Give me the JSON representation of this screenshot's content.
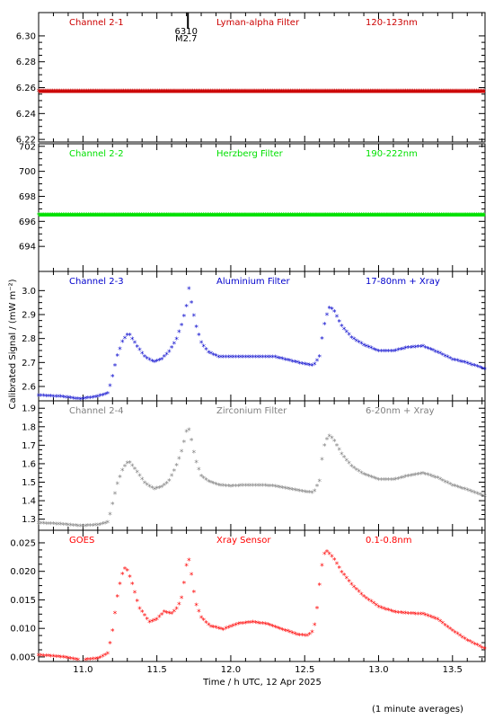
{
  "chart_data": {
    "type": "scatter",
    "xlabel": "Time / h UTC, 12 Apr 2025",
    "ylabel": "Calibrated Signal / (mW m⁻²)",
    "footnote": "(1 minute averages)",
    "xlim": [
      10.7,
      13.72
    ],
    "xticks": [
      11.0,
      11.5,
      12.0,
      12.5,
      13.0,
      13.5
    ],
    "xtick_labels": [
      "11.0",
      "11.5",
      "12.0",
      "12.5",
      "13.0",
      "13.5"
    ],
    "flare_marker": {
      "x": 11.71,
      "labels": [
        "6310",
        "M2.7"
      ]
    },
    "grid": false,
    "panels": [
      {
        "channel": "Channel 2-1",
        "filter": "Lyman-alpha Filter",
        "band": "120-123nm",
        "color": "#cc0000",
        "ylim": [
          6.218,
          6.318
        ],
        "yticks": [
          6.22,
          6.24,
          6.26,
          6.28,
          6.3
        ],
        "ytick_labels": [
          "6.22",
          "6.24",
          "6.26",
          "6.28",
          "6.30"
        ],
        "x": [
          10.7,
          13.72
        ],
        "y": [
          6.257,
          6.257
        ]
      },
      {
        "channel": "Channel 2-2",
        "filter": "Herzberg Filter",
        "band": "190-222nm",
        "color": "#00e000",
        "ylim": [
          692.0,
          702.2
        ],
        "yticks": [
          694,
          696,
          698,
          700,
          702
        ],
        "ytick_labels": [
          "694",
          "696",
          "698",
          "700",
          "702"
        ],
        "x": [
          10.7,
          13.72
        ],
        "y": [
          696.5,
          696.5
        ]
      },
      {
        "channel": "Channel 2-3",
        "filter": "Aluminium Filter",
        "band": "17-80nm + Xray",
        "color": "#0000cc",
        "ylim": [
          2.54,
          3.08
        ],
        "yticks": [
          2.6,
          2.7,
          2.8,
          2.9,
          3.0
        ],
        "ytick_labels": [
          "2.6",
          "2.7",
          "2.8",
          "2.9",
          "3.0"
        ],
        "x": [
          10.7,
          10.85,
          10.98,
          11.1,
          11.17,
          11.2,
          11.23,
          11.27,
          11.31,
          11.36,
          11.42,
          11.48,
          11.53,
          11.58,
          11.63,
          11.67,
          11.7,
          11.71,
          11.73,
          11.76,
          11.8,
          11.85,
          11.92,
          12.0,
          12.1,
          12.2,
          12.3,
          12.4,
          12.5,
          12.56,
          12.6,
          12.62,
          12.64,
          12.67,
          12.7,
          12.75,
          12.82,
          12.9,
          13.0,
          13.1,
          13.2,
          13.3,
          13.4,
          13.5,
          13.6,
          13.72
        ],
        "y": [
          2.56,
          2.555,
          2.545,
          2.555,
          2.57,
          2.64,
          2.72,
          2.79,
          2.82,
          2.77,
          2.72,
          2.7,
          2.71,
          2.74,
          2.79,
          2.86,
          2.93,
          3.03,
          2.96,
          2.86,
          2.78,
          2.74,
          2.72,
          2.72,
          2.72,
          2.72,
          2.72,
          2.705,
          2.69,
          2.685,
          2.72,
          2.81,
          2.88,
          2.93,
          2.91,
          2.85,
          2.8,
          2.77,
          2.745,
          2.745,
          2.76,
          2.765,
          2.74,
          2.71,
          2.695,
          2.67
        ]
      },
      {
        "channel": "Channel 2-4",
        "filter": "Zirconium Filter",
        "band": "6-20nm + Xray",
        "color": "#808080",
        "ylim": [
          1.24,
          1.94
        ],
        "yticks": [
          1.3,
          1.4,
          1.5,
          1.6,
          1.7,
          1.8,
          1.9
        ],
        "ytick_labels": [
          "1.3",
          "1.4",
          "1.5",
          "1.6",
          "1.7",
          "1.8",
          "1.9"
        ],
        "x": [
          10.7,
          10.85,
          10.98,
          11.1,
          11.17,
          11.2,
          11.23,
          11.27,
          11.31,
          11.36,
          11.42,
          11.48,
          11.53,
          11.58,
          11.63,
          11.67,
          11.7,
          11.71,
          11.73,
          11.76,
          11.8,
          11.85,
          11.92,
          12.0,
          12.1,
          12.2,
          12.3,
          12.4,
          12.5,
          12.56,
          12.6,
          12.62,
          12.64,
          12.67,
          12.7,
          12.75,
          12.82,
          12.9,
          13.0,
          13.1,
          13.2,
          13.3,
          13.4,
          13.5,
          13.6,
          13.72
        ],
        "y": [
          1.275,
          1.27,
          1.26,
          1.265,
          1.28,
          1.38,
          1.48,
          1.57,
          1.61,
          1.56,
          1.49,
          1.46,
          1.47,
          1.5,
          1.58,
          1.67,
          1.77,
          1.8,
          1.74,
          1.62,
          1.53,
          1.5,
          1.48,
          1.475,
          1.48,
          1.48,
          1.475,
          1.46,
          1.445,
          1.44,
          1.5,
          1.64,
          1.72,
          1.75,
          1.72,
          1.65,
          1.58,
          1.54,
          1.51,
          1.51,
          1.53,
          1.545,
          1.52,
          1.48,
          1.455,
          1.42
        ]
      },
      {
        "channel": "GOES",
        "filter": "Xray Sensor",
        "band": "0.1-0.8nm",
        "color": "#ff0000",
        "ylim": [
          0.0042,
          0.0272
        ],
        "yticks": [
          0.005,
          0.01,
          0.015,
          0.02,
          0.025
        ],
        "ytick_labels": [
          "0.005",
          "0.010",
          "0.015",
          "0.020",
          "0.025"
        ],
        "x": [
          10.7,
          10.85,
          10.98,
          11.1,
          11.17,
          11.2,
          11.23,
          11.26,
          11.29,
          11.33,
          11.38,
          11.45,
          11.5,
          11.55,
          11.6,
          11.64,
          11.67,
          11.69,
          11.71,
          11.73,
          11.76,
          11.8,
          11.86,
          11.95,
          12.05,
          12.15,
          12.25,
          12.35,
          12.45,
          12.52,
          12.56,
          12.58,
          12.6,
          12.62,
          12.64,
          12.66,
          12.7,
          12.75,
          12.82,
          12.9,
          13.0,
          13.1,
          13.2,
          13.3,
          13.4,
          13.5,
          13.6,
          13.72
        ],
        "y": [
          0.0052,
          0.0049,
          0.0043,
          0.0046,
          0.0055,
          0.0095,
          0.015,
          0.019,
          0.0208,
          0.018,
          0.0135,
          0.011,
          0.0115,
          0.0128,
          0.0125,
          0.0135,
          0.0155,
          0.019,
          0.0228,
          0.02,
          0.0145,
          0.0118,
          0.0103,
          0.0097,
          0.0107,
          0.011,
          0.0106,
          0.0097,
          0.0088,
          0.0086,
          0.0095,
          0.0125,
          0.0175,
          0.0215,
          0.0236,
          0.0232,
          0.022,
          0.0198,
          0.0175,
          0.0155,
          0.0137,
          0.0128,
          0.0125,
          0.0124,
          0.0115,
          0.0095,
          0.0078,
          0.0063
        ]
      }
    ]
  }
}
